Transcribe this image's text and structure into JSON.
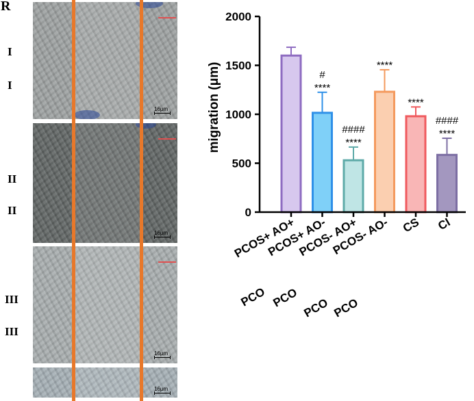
{
  "panel_label": "R",
  "left_panels": {
    "rows": [
      {
        "label_top": "I",
        "label_bottom": "I",
        "scale": "16μm"
      },
      {
        "label_top": "II",
        "label_bottom": "II",
        "scale": "16μm"
      },
      {
        "label_top": "III",
        "label_bottom": "III",
        "scale": "16μm"
      },
      {
        "scale": "16μm"
      }
    ]
  },
  "colors": {
    "guide_line": "#e8782a",
    "bar_outline_default": "#000000"
  },
  "chart_data": {
    "type": "bar",
    "title": "",
    "xlabel": "",
    "ylabel": "migration (μm)",
    "ylim": [
      0,
      2000
    ],
    "yticks": [
      0,
      500,
      1000,
      1500,
      2000
    ],
    "categories": [
      "PCOS+ AO+",
      "PCOS+ AO-",
      "PCOS- AO+",
      "PCOS- AO-",
      "CS",
      "CI"
    ],
    "values": [
      1600,
      1015,
      530,
      1230,
      980,
      585
    ],
    "errors": [
      85,
      210,
      135,
      225,
      95,
      170
    ],
    "significance": [
      "",
      "#\n****",
      "####\n****",
      "****",
      "****",
      "####\n****"
    ],
    "bar_fill": [
      "#d7c8ee",
      "#7fd0f8",
      "#bfe5e5",
      "#fbcfb0",
      "#f9b6b6",
      "#a397bf"
    ],
    "bar_edge": [
      "#8e6cc1",
      "#2f90e8",
      "#5eaaa8",
      "#f49a5e",
      "#ef5a5e",
      "#7c6ea3"
    ],
    "x_axis_ghost_labels": [
      "PCO",
      "PCO",
      "PCO",
      "PCO"
    ]
  }
}
